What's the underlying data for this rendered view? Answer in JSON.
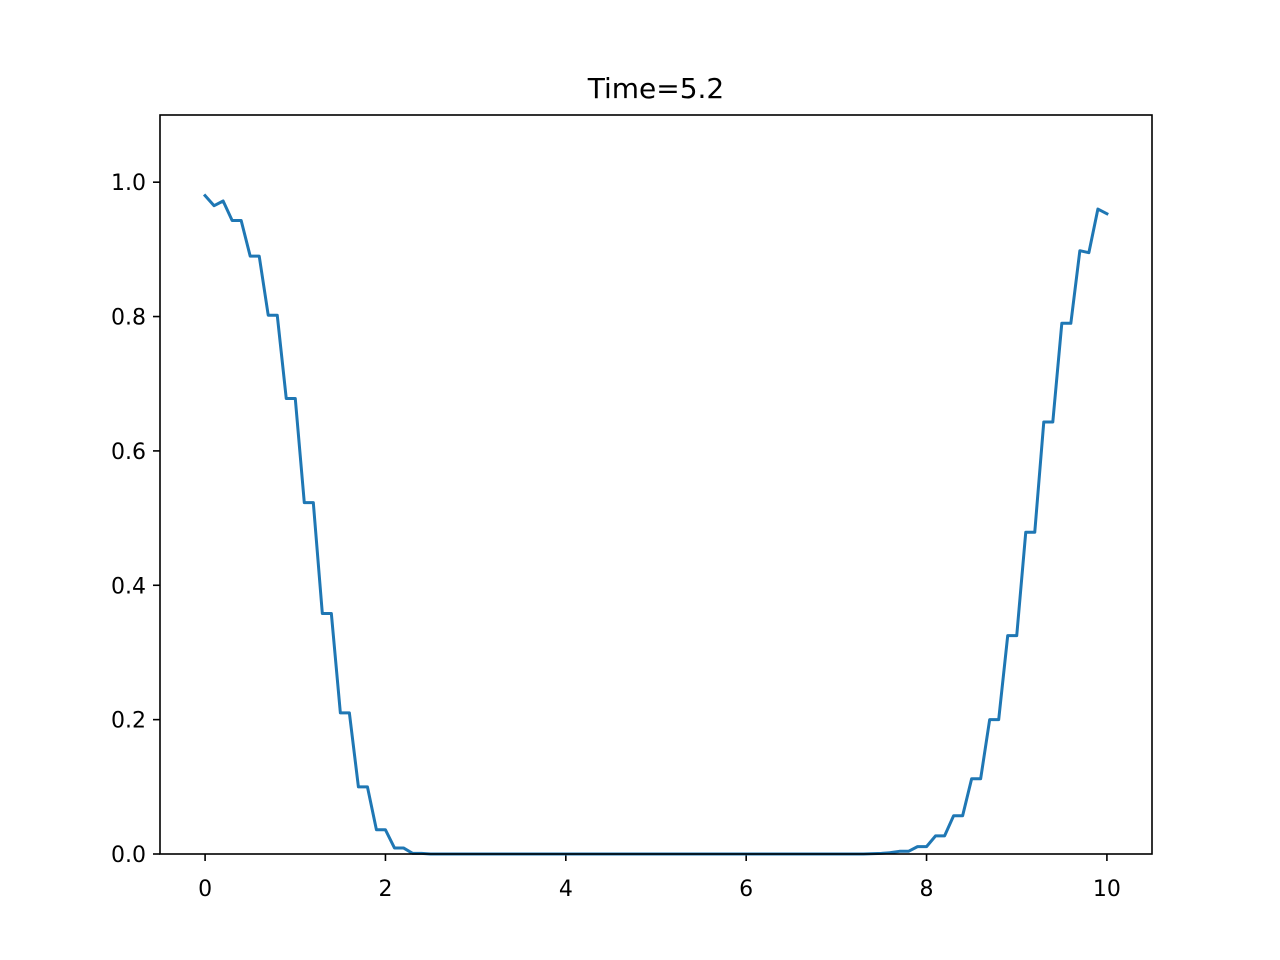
{
  "chart_data": {
    "type": "line",
    "title": "Time=5.2",
    "xlabel": "",
    "ylabel": "",
    "xlim": [
      -0.5,
      10.5
    ],
    "ylim": [
      0.0,
      1.1
    ],
    "grid": false,
    "x_ticks": [
      0,
      2,
      4,
      6,
      8,
      10
    ],
    "x_tick_labels": [
      "0",
      "2",
      "4",
      "6",
      "8",
      "10"
    ],
    "y_ticks": [
      0.0,
      0.2,
      0.4,
      0.6,
      0.8,
      1.0
    ],
    "y_tick_labels": [
      "0.0",
      "0.2",
      "0.4",
      "0.6",
      "0.8",
      "1.0"
    ],
    "series": [
      {
        "color": "#1f77b4",
        "x": [
          0.0,
          0.1,
          0.2,
          0.3,
          0.4,
          0.5,
          0.6,
          0.7,
          0.8,
          0.9,
          1.0,
          1.1,
          1.2,
          1.3,
          1.4,
          1.5,
          1.6,
          1.7,
          1.8,
          1.9,
          2.0,
          2.1,
          2.2,
          2.3,
          2.4,
          2.5,
          3.0,
          4.0,
          5.0,
          6.0,
          7.0,
          7.3,
          7.5,
          7.6,
          7.7,
          7.8,
          7.9,
          8.0,
          8.1,
          8.2,
          8.3,
          8.4,
          8.5,
          8.6,
          8.7,
          8.8,
          8.9,
          9.0,
          9.1,
          9.2,
          9.3,
          9.4,
          9.5,
          9.6,
          9.7,
          9.8,
          9.9,
          10.0
        ],
        "values": [
          0.98,
          0.965,
          0.972,
          0.943,
          0.943,
          0.89,
          0.89,
          0.802,
          0.802,
          0.678,
          0.678,
          0.523,
          0.523,
          0.358,
          0.358,
          0.21,
          0.21,
          0.1,
          0.1,
          0.036,
          0.036,
          0.009,
          0.009,
          0.001,
          0.001,
          0.0,
          0.0,
          0.0,
          0.0,
          0.0,
          0.0,
          0.0,
          0.001,
          0.002,
          0.004,
          0.004,
          0.011,
          0.011,
          0.027,
          0.027,
          0.057,
          0.057,
          0.112,
          0.112,
          0.2,
          0.2,
          0.325,
          0.325,
          0.479,
          0.479,
          0.643,
          0.643,
          0.79,
          0.79,
          0.898,
          0.895,
          0.96,
          0.953
        ]
      }
    ]
  }
}
